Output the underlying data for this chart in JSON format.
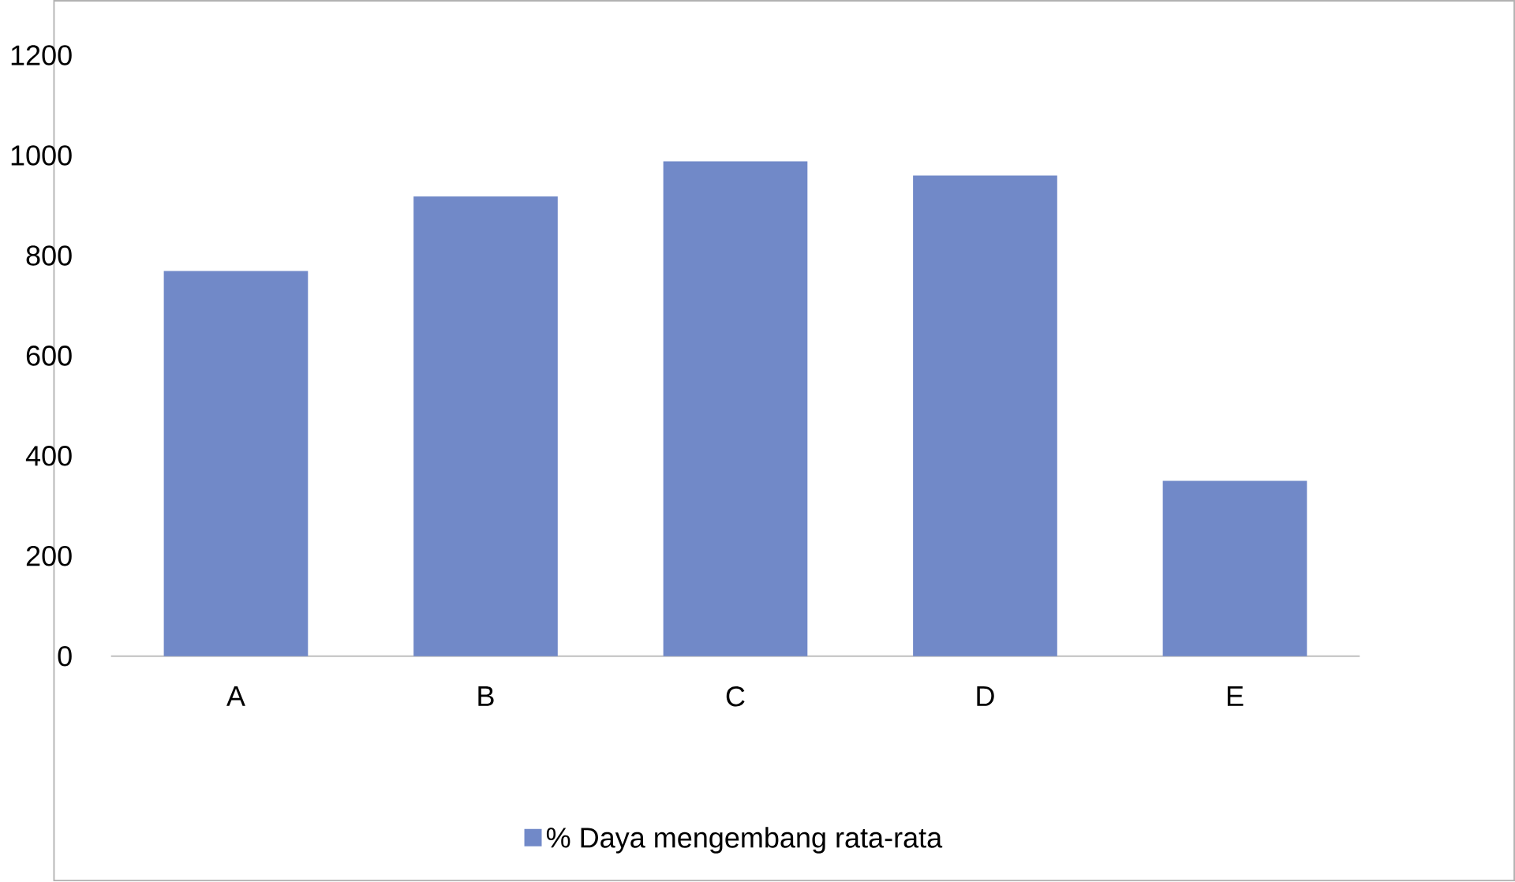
{
  "chart_data": {
    "type": "bar",
    "categories": [
      "A",
      "B",
      "C",
      "D",
      "E"
    ],
    "series": [
      {
        "name": "% Daya mengembang rata-rata",
        "color": "#7189c8",
        "values": [
          769,
          918,
          988,
          960,
          350
        ]
      }
    ],
    "ylim": [
      0,
      1200
    ],
    "yticks": [
      0,
      200,
      400,
      600,
      800,
      1000,
      1200
    ],
    "legend": "bottom"
  }
}
